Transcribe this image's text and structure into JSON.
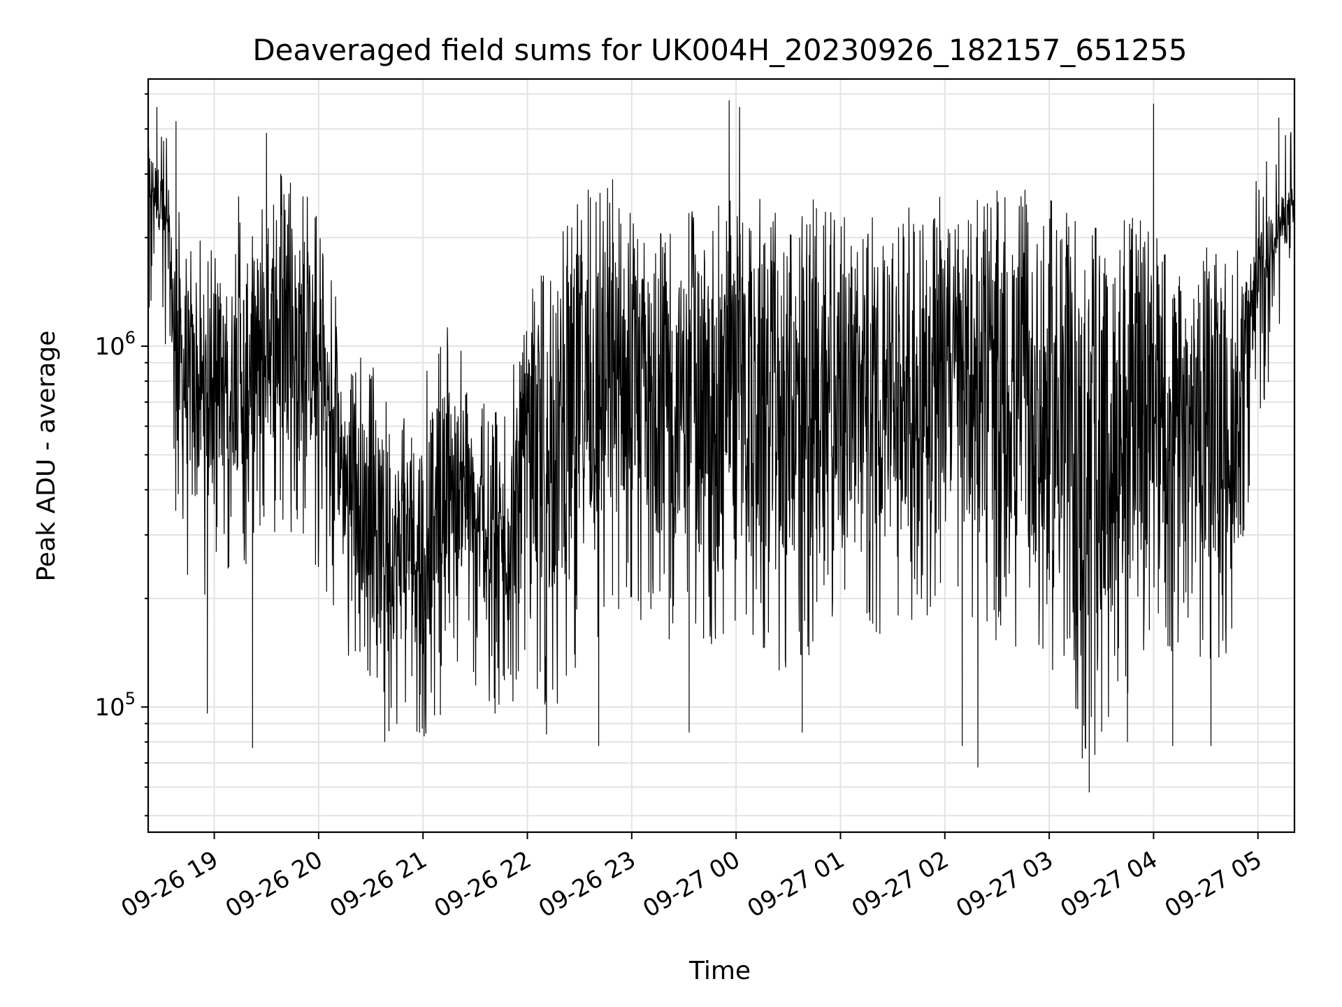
{
  "chart_data": {
    "type": "line",
    "title": "Deaveraged field sums for UK004H_20230926_182157_651255",
    "xlabel": "Time",
    "ylabel": "Peak ADU - average",
    "yscale": "log",
    "ylim": [
      45000,
      5500000
    ],
    "xlim": [
      "2023-09-26 18:22",
      "2023-09-27 05:21"
    ],
    "grid": true,
    "line_color": "#000000",
    "x_tick_labels": [
      {
        "t": "2023-09-26 19:00",
        "label": "09-26 19"
      },
      {
        "t": "2023-09-26 20:00",
        "label": "09-26 20"
      },
      {
        "t": "2023-09-26 21:00",
        "label": "09-26 21"
      },
      {
        "t": "2023-09-26 22:00",
        "label": "09-26 22"
      },
      {
        "t": "2023-09-26 23:00",
        "label": "09-26 23"
      },
      {
        "t": "2023-09-27 00:00",
        "label": "09-27 00"
      },
      {
        "t": "2023-09-27 01:00",
        "label": "09-27 01"
      },
      {
        "t": "2023-09-27 02:00",
        "label": "09-27 02"
      },
      {
        "t": "2023-09-27 03:00",
        "label": "09-27 03"
      },
      {
        "t": "2023-09-27 04:00",
        "label": "09-27 04"
      },
      {
        "t": "2023-09-27 05:00",
        "label": "09-27 05"
      }
    ],
    "y_tick_labels": [
      {
        "value": 100000,
        "base": "10",
        "exp": "5"
      },
      {
        "value": 1000000,
        "base": "10",
        "exp": "6"
      }
    ],
    "series": [
      {
        "x": [
          "2023-09-26 18:22",
          "2023-09-26 18:30",
          "2023-09-26 18:40",
          "2023-09-26 18:50",
          "2023-09-26 19:00",
          "2023-09-26 19:15",
          "2023-09-26 19:30",
          "2023-09-26 19:45",
          "2023-09-26 20:00",
          "2023-09-26 20:15",
          "2023-09-26 20:30",
          "2023-09-26 20:45",
          "2023-09-26 21:00",
          "2023-09-26 21:15",
          "2023-09-26 21:30",
          "2023-09-26 21:45",
          "2023-09-26 22:00",
          "2023-09-26 22:15",
          "2023-09-26 22:30",
          "2023-09-26 22:45",
          "2023-09-26 23:00",
          "2023-09-26 23:15",
          "2023-09-26 23:30",
          "2023-09-26 23:45",
          "2023-09-27 00:00",
          "2023-09-27 00:15",
          "2023-09-27 00:30",
          "2023-09-27 00:45",
          "2023-09-27 01:00",
          "2023-09-27 01:15",
          "2023-09-27 01:30",
          "2023-09-27 01:45",
          "2023-09-27 02:00",
          "2023-09-27 02:15",
          "2023-09-27 02:30",
          "2023-09-27 02:45",
          "2023-09-27 03:00",
          "2023-09-27 03:15",
          "2023-09-27 03:30",
          "2023-09-27 03:45",
          "2023-09-27 04:00",
          "2023-09-27 04:15",
          "2023-09-27 04:30",
          "2023-09-27 04:45",
          "2023-09-27 05:00",
          "2023-09-27 05:10",
          "2023-09-27 05:21"
        ],
        "upper": [
          3600000,
          3000000,
          1600000,
          1300000,
          1300000,
          1600000,
          2000000,
          2100000,
          1600000,
          700000,
          600000,
          500000,
          600000,
          800000,
          500000,
          450000,
          900000,
          1300000,
          1900000,
          1900000,
          1700000,
          1500000,
          1600000,
          1600000,
          1800000,
          1700000,
          1800000,
          1700000,
          1600000,
          1500000,
          1600000,
          1700000,
          1800000,
          1800000,
          1700000,
          1800000,
          1700000,
          1500000,
          1600000,
          1500000,
          1500000,
          1500000,
          1300000,
          1100000,
          2000000,
          2500000,
          2800000
        ],
        "lower": [
          2500000,
          2000000,
          500000,
          400000,
          450000,
          450000,
          550000,
          550000,
          500000,
          280000,
          180000,
          150000,
          150000,
          280000,
          200000,
          180000,
          220000,
          200000,
          280000,
          300000,
          400000,
          300000,
          350000,
          300000,
          350000,
          250000,
          250000,
          280000,
          400000,
          300000,
          350000,
          330000,
          400000,
          300000,
          320000,
          250000,
          250000,
          160000,
          140000,
          220000,
          280000,
          300000,
          250000,
          300000,
          1300000,
          1800000,
          2000000
        ],
        "spikes": [
          {
            "t": "2023-09-26 18:27",
            "v": 4600000
          },
          {
            "t": "2023-09-26 18:38",
            "v": 4200000
          },
          {
            "t": "2023-09-26 18:56",
            "v": 96000
          },
          {
            "t": "2023-09-26 19:14",
            "v": 2600000
          },
          {
            "t": "2023-09-26 19:22",
            "v": 77000
          },
          {
            "t": "2023-09-26 19:30",
            "v": 3900000
          },
          {
            "t": "2023-09-26 20:38",
            "v": 80000
          },
          {
            "t": "2023-09-26 20:58",
            "v": 85000
          },
          {
            "t": "2023-09-26 21:10",
            "v": 95000
          },
          {
            "t": "2023-09-26 22:11",
            "v": 84000
          },
          {
            "t": "2023-09-26 22:41",
            "v": 78000
          },
          {
            "t": "2023-09-26 22:49",
            "v": 2900000
          },
          {
            "t": "2023-09-26 23:33",
            "v": 85000
          },
          {
            "t": "2023-09-26 23:56",
            "v": 4800000
          },
          {
            "t": "2023-09-27 00:02",
            "v": 4600000
          },
          {
            "t": "2023-09-27 00:38",
            "v": 85000
          },
          {
            "t": "2023-09-27 02:10",
            "v": 78000
          },
          {
            "t": "2023-09-27 02:19",
            "v": 68000
          },
          {
            "t": "2023-09-27 02:30",
            "v": 2700000
          },
          {
            "t": "2023-09-27 03:19",
            "v": 72000
          },
          {
            "t": "2023-09-27 03:23",
            "v": 58000
          },
          {
            "t": "2023-09-27 03:45",
            "v": 80000
          },
          {
            "t": "2023-09-27 04:00",
            "v": 4700000
          },
          {
            "t": "2023-09-27 04:11",
            "v": 78000
          },
          {
            "t": "2023-09-27 04:33",
            "v": 78000
          },
          {
            "t": "2023-09-27 05:12",
            "v": 4300000
          }
        ]
      }
    ]
  }
}
